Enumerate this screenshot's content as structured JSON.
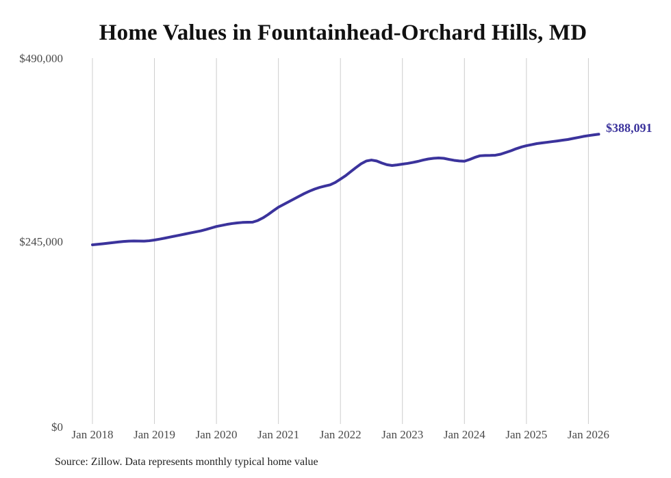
{
  "title": "Home Values in Fountainhead-Orchard Hills, MD",
  "source_note": "Source: Zillow. Data represents monthly typical home value",
  "end_label": "$388,091",
  "colors": {
    "line": "#3b339c",
    "grid": "#cccccc",
    "axis_text": "#4a4a4a",
    "title_text": "#111111",
    "source_text": "#1f1f1f"
  },
  "chart_data": {
    "type": "line",
    "title": "Home Values in Fountainhead-Orchard Hills, MD",
    "xlabel": "",
    "ylabel": "",
    "ylim": [
      0,
      490000
    ],
    "grid": "vertical-year-gridlines-only",
    "legend": "none",
    "x_start_month": "2018-01",
    "x_end_month": "2026-03",
    "x_tick_labels": [
      "Jan 2018",
      "Jan 2019",
      "Jan 2020",
      "Jan 2021",
      "Jan 2022",
      "Jan 2023",
      "Jan 2024",
      "Jan 2025",
      "Jan 2026"
    ],
    "y_ticks": [
      {
        "label": "$0",
        "value": 0
      },
      {
        "label": "$245,000",
        "value": 245000
      },
      {
        "label": "$490,000",
        "value": 490000
      }
    ],
    "final_value": 388091,
    "final_value_label": "$388,091",
    "series": [
      {
        "name": "Typical home value",
        "monthly_values": [
          240000,
          240600,
          241300,
          242100,
          242900,
          243700,
          244400,
          244900,
          245100,
          245000,
          244900,
          245400,
          246400,
          247600,
          248900,
          250300,
          251700,
          253100,
          254500,
          255900,
          257300,
          258700,
          260500,
          262500,
          264500,
          265900,
          267300,
          268400,
          269300,
          269900,
          270200,
          270300,
          272500,
          276000,
          280500,
          285500,
          290300,
          294000,
          297700,
          301300,
          305000,
          308600,
          311800,
          314600,
          316900,
          318700,
          320300,
          323500,
          327900,
          332500,
          338000,
          343400,
          348500,
          352200,
          353500,
          352300,
          349500,
          347200,
          346200,
          347000,
          348000,
          349000,
          350300,
          351700,
          353500,
          354900,
          355800,
          356300,
          355800,
          354400,
          353100,
          352300,
          351900,
          354200,
          357000,
          359200,
          359600,
          359700,
          360000,
          361300,
          363600,
          365900,
          368600,
          370900,
          372700,
          374100,
          375500,
          376400,
          377300,
          378200,
          379100,
          380100,
          381000,
          382400,
          383700,
          385100,
          386200,
          387200,
          388091
        ]
      }
    ]
  }
}
